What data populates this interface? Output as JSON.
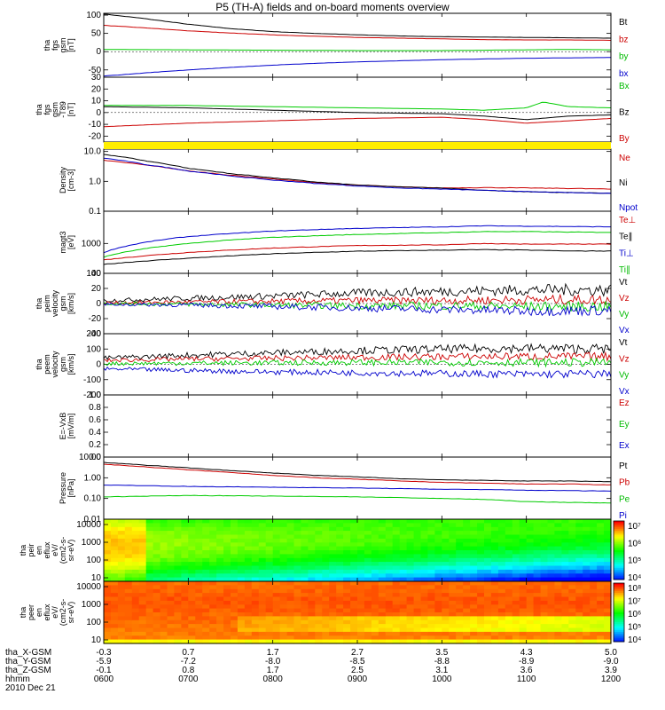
{
  "chart_data": {
    "type": "line",
    "title": "P5 (TH-A) fields and on-board moments overview",
    "time_range_hours": [
      6,
      12
    ],
    "panels": [
      {
        "id": "fgs_gsm",
        "ylabel": [
          "tha",
          "fgs",
          "gsm",
          "[nT]"
        ],
        "yticks": [
          "100",
          "50",
          "0",
          "-50"
        ],
        "ylim": [
          -70,
          105
        ],
        "series": [
          {
            "name": "Bt",
            "color": "#000000",
            "x": [
              6,
              6.5,
              7,
              7.5,
              8,
              8.5,
              9,
              9.5,
              10,
              10.5,
              11,
              11.5,
              12
            ],
            "y": [
              103,
              90,
              75,
              63,
              55,
              50,
              46,
              43,
              41,
              40,
              39,
              38,
              37
            ]
          },
          {
            "name": "bz",
            "color": "#cc0000",
            "x": [
              6,
              6.5,
              7,
              7.5,
              8,
              8.5,
              9,
              9.5,
              10,
              10.5,
              11,
              11.5,
              12
            ],
            "y": [
              72,
              65,
              57,
              51,
              46,
              42,
              39,
              37,
              35,
              33,
              32,
              32,
              31
            ]
          },
          {
            "name": "by",
            "color": "#00cc00",
            "x": [
              6,
              7,
              8,
              9,
              10,
              10.5,
              11,
              11.5,
              12
            ],
            "y": [
              6,
              5,
              4,
              3,
              3,
              4,
              5,
              6,
              5
            ]
          },
          {
            "name": "bx",
            "color": "#0000cc",
            "x": [
              6,
              6.5,
              7,
              7.5,
              8,
              8.5,
              9,
              9.5,
              10,
              10.5,
              11,
              11.5,
              12
            ],
            "y": [
              -67,
              -58,
              -50,
              -43,
              -37,
              -32,
              -28,
              -25,
              -22,
              -20,
              -18,
              -17,
              -16
            ]
          }
        ]
      },
      {
        "id": "fgs_delta",
        "ylabel": [
          "tha",
          "fgs",
          "gsm",
          "-T89",
          "[nT]"
        ],
        "yticks": [
          "30",
          "20",
          "10",
          "0",
          "-10",
          "-20"
        ],
        "ylim": [
          -25,
          30
        ],
        "series": [
          {
            "name": "Bx",
            "color": "#00cc00",
            "x": [
              6,
              7,
              8,
              9,
              10,
              10.5,
              11,
              11.2,
              11.5,
              12
            ],
            "y": [
              6,
              6,
              5,
              4,
              3,
              2,
              4,
              9,
              5,
              4
            ]
          },
          {
            "name": "Bz",
            "color": "#000000",
            "x": [
              6,
              7,
              8,
              9,
              10,
              10.5,
              11,
              11.5,
              12
            ],
            "y": [
              5,
              4,
              2,
              0,
              -1,
              -3,
              -6,
              -3,
              -2
            ]
          },
          {
            "name": "By",
            "color": "#cc0000",
            "x": [
              6,
              7,
              8,
              9,
              10,
              10.5,
              11,
              11.5,
              12
            ],
            "y": [
              -12,
              -9,
              -7,
              -5,
              -4,
              -6,
              -9,
              -7,
              -5
            ]
          }
        ]
      },
      {
        "id": "density",
        "ylabel": [
          "Density",
          "[cm-3]"
        ],
        "yticks": [
          "10.0",
          "1.0",
          "0.1"
        ],
        "log": true,
        "ylim": [
          0.1,
          12
        ],
        "series": [
          {
            "name": "Ne",
            "color": "#cc0000",
            "x": [
              6,
              6.5,
              7,
              7.5,
              8,
              8.5,
              9,
              9.5,
              10,
              10.5,
              11,
              11.5,
              12
            ],
            "y": [
              5,
              3.5,
              2.2,
              1.6,
              1.2,
              0.9,
              0.75,
              0.65,
              0.6,
              0.62,
              0.6,
              0.58,
              0.55
            ]
          },
          {
            "name": "Ni",
            "color": "#000000",
            "x": [
              6,
              6.5,
              7,
              7.5,
              8,
              8.5,
              9,
              9.5,
              10,
              10.5,
              11,
              11.5,
              12
            ],
            "y": [
              8,
              4.8,
              2.7,
              1.8,
              1.3,
              0.95,
              0.75,
              0.65,
              0.6,
              0.5,
              0.45,
              0.42,
              0.4
            ]
          },
          {
            "name": "Npot",
            "color": "#0000cc",
            "x": [
              6,
              6.5,
              7,
              7.5,
              8,
              8.5,
              9,
              9.5,
              10,
              10.5,
              11,
              11.5,
              12
            ],
            "y": [
              6,
              3.6,
              2.2,
              1.5,
              1.1,
              0.85,
              0.7,
              0.6,
              0.55,
              0.5,
              0.45,
              0.42,
              0.4
            ]
          }
        ]
      },
      {
        "id": "temperature",
        "ylabel": [
          "magt3",
          "[eV]"
        ],
        "yticks": [
          "1000",
          "100"
        ],
        "log": true,
        "ylim": [
          100,
          12000
        ],
        "series": [
          {
            "name": "Te⊥",
            "color": "#cc0000",
            "x": [
              6,
              7,
              8,
              9,
              10,
              10.5,
              11,
              11.5,
              12
            ],
            "y": [
              280,
              500,
              700,
              850,
              900,
              1000,
              950,
              950,
              950
            ]
          },
          {
            "name": "Te∥",
            "color": "#000000",
            "x": [
              6,
              7,
              8,
              9,
              10,
              10.5,
              11,
              11.5,
              12
            ],
            "y": [
              200,
              320,
              450,
              550,
              600,
              620,
              600,
              560,
              560
            ]
          },
          {
            "name": "Ti⊥",
            "color": "#0000cc",
            "x": [
              6,
              7,
              8,
              9,
              10,
              10.5,
              11,
              11.5,
              12
            ],
            "y": [
              500,
              1700,
              2600,
              3200,
              3600,
              3900,
              3800,
              3700,
              3600
            ]
          },
          {
            "name": "Ti∥",
            "color": "#00cc00",
            "x": [
              6,
              7,
              8,
              9,
              10,
              10.5,
              11,
              11.5,
              12
            ],
            "y": [
              350,
              1000,
              1600,
              2000,
              2300,
              2500,
              2500,
              2400,
              2350
            ]
          }
        ]
      },
      {
        "id": "peim_velocity",
        "ylabel": [
          "tha",
          "peim",
          "velocity",
          "gsm",
          "[km/s]"
        ],
        "yticks": [
          "40",
          "20",
          "0",
          "-20",
          "-40"
        ],
        "ylim": [
          -40,
          40
        ],
        "series": [
          {
            "name": "Vt",
            "color": "#000000",
            "x": [
              6,
              7,
              8,
              9,
              10,
              11,
              12
            ],
            "y": [
              4,
              7,
              10,
              14,
              16,
              18,
              18
            ]
          },
          {
            "name": "Vz",
            "color": "#cc0000",
            "x": [
              6,
              7,
              8,
              9,
              10,
              11,
              12
            ],
            "y": [
              1,
              2,
              3,
              4,
              4,
              5,
              5
            ]
          },
          {
            "name": "Vy",
            "color": "#00cc00",
            "x": [
              6,
              7,
              8,
              9,
              10,
              11,
              12
            ],
            "y": [
              0,
              -1,
              -2,
              -3,
              -3,
              -4,
              -4
            ]
          },
          {
            "name": "Vx",
            "color": "#0000cc",
            "x": [
              6,
              7,
              8,
              9,
              10,
              11,
              12
            ],
            "y": [
              -1,
              -2,
              -4,
              -6,
              -8,
              -10,
              -9
            ]
          }
        ]
      },
      {
        "id": "peem_velocity",
        "ylabel": [
          "tha",
          "peem",
          "velocity",
          "gsm",
          "[km/s]"
        ],
        "yticks": [
          "200",
          "100",
          "0",
          "-100",
          "-200"
        ],
        "ylim": [
          -200,
          200
        ],
        "series": [
          {
            "name": "Vt",
            "color": "#000000",
            "x": [
              6,
              7,
              8,
              9,
              10,
              11,
              12
            ],
            "y": [
              40,
              60,
              75,
              90,
              100,
              105,
              100
            ]
          },
          {
            "name": "Vz",
            "color": "#cc0000",
            "x": [
              6,
              7,
              8,
              9,
              10,
              11,
              12
            ],
            "y": [
              25,
              35,
              40,
              45,
              50,
              52,
              50
            ]
          },
          {
            "name": "Vy",
            "color": "#00cc00",
            "x": [
              6,
              7,
              8,
              9,
              10,
              11,
              12
            ],
            "y": [
              5,
              8,
              10,
              12,
              12,
              12,
              12
            ]
          },
          {
            "name": "Vx",
            "color": "#0000cc",
            "x": [
              6,
              7,
              8,
              9,
              10,
              11,
              12
            ],
            "y": [
              -30,
              -40,
              -50,
              -55,
              -60,
              -65,
              -62
            ]
          }
        ]
      },
      {
        "id": "efield",
        "ylabel": [
          "E=-VxB",
          "[mV/m]"
        ],
        "yticks": [
          "1.0",
          "0.8",
          "0.6",
          "0.4",
          "0.2",
          "0.0"
        ],
        "ylim": [
          0,
          1
        ],
        "series": []
      },
      {
        "id": "pressure",
        "ylabel": [
          "Pressure",
          "[nPa]"
        ],
        "yticks": [
          "10.00",
          "1.00",
          "0.10",
          "0.01"
        ],
        "log": true,
        "ylim": [
          0.01,
          10
        ],
        "series": [
          {
            "name": "Pt",
            "color": "#000000",
            "x": [
              6,
              6.5,
              7,
              7.5,
              8,
              8.5,
              9,
              9.5,
              10,
              10.5,
              11,
              11.5,
              12
            ],
            "y": [
              5.5,
              4,
              3,
              2.2,
              1.7,
              1.3,
              1.1,
              0.9,
              0.8,
              0.75,
              0.7,
              0.7,
              0.65
            ]
          },
          {
            "name": "Pb",
            "color": "#cc0000",
            "x": [
              6,
              6.5,
              7,
              7.5,
              8,
              8.5,
              9,
              9.5,
              10,
              10.5,
              11,
              11.5,
              12
            ],
            "y": [
              4.5,
              3.3,
              2.4,
              1.8,
              1.3,
              1.0,
              0.85,
              0.7,
              0.6,
              0.55,
              0.5,
              0.5,
              0.45
            ]
          },
          {
            "name": "Pe",
            "color": "#00cc00",
            "x": [
              6,
              7,
              8,
              9,
              10,
              10.5,
              11,
              11.5,
              12
            ],
            "y": [
              0.12,
              0.14,
              0.13,
              0.12,
              0.1,
              0.09,
              0.07,
              0.065,
              0.06
            ]
          },
          {
            "name": "Pi",
            "color": "#0000cc",
            "x": [
              6,
              7,
              8,
              9,
              10,
              10.5,
              11,
              11.5,
              12
            ],
            "y": [
              0.45,
              0.38,
              0.35,
              0.32,
              0.28,
              0.27,
              0.25,
              0.24,
              0.23
            ]
          }
        ]
      },
      {
        "id": "peir_spectrogram",
        "type": "heatmap",
        "ylabel": [
          "tha",
          "peir",
          "en",
          "eflux",
          "eV/",
          "(cm2-s-",
          "sr-eV)"
        ],
        "yticks": [
          "10000",
          "1000",
          "100",
          "10"
        ],
        "colorbar_ticks": [
          "10⁷",
          "10⁶",
          "10⁵",
          "10⁴"
        ]
      },
      {
        "id": "peer_spectrogram",
        "type": "heatmap",
        "ylabel": [
          "tha",
          "peer",
          "en",
          "eflux",
          "eV/",
          "(cm2-s-",
          "sr-eV)"
        ],
        "yticks": [
          "10000",
          "1000",
          "100",
          "10"
        ],
        "colorbar_ticks": [
          "10⁸",
          "10⁷",
          "10⁶",
          "10⁵",
          "10⁴"
        ]
      }
    ],
    "x_axis": {
      "row_labels": [
        "tha_X-GSM",
        "tha_Y-GSM",
        "tha_Z-GSM",
        "hhmm",
        "2010 Dec 21"
      ],
      "columns": [
        [
          "-0.3",
          "-5.9",
          "-0.1",
          "0600"
        ],
        [
          "0.7",
          "-7.2",
          "0.8",
          "0700"
        ],
        [
          "1.7",
          "-8.0",
          "1.7",
          "0800"
        ],
        [
          "2.7",
          "-8.5",
          "2.5",
          "0900"
        ],
        [
          "3.5",
          "-8.8",
          "3.1",
          "1000"
        ],
        [
          "4.3",
          "-8.9",
          "3.6",
          "1100"
        ],
        [
          "5.0",
          "-9.0",
          "3.9",
          "1200"
        ]
      ]
    }
  }
}
